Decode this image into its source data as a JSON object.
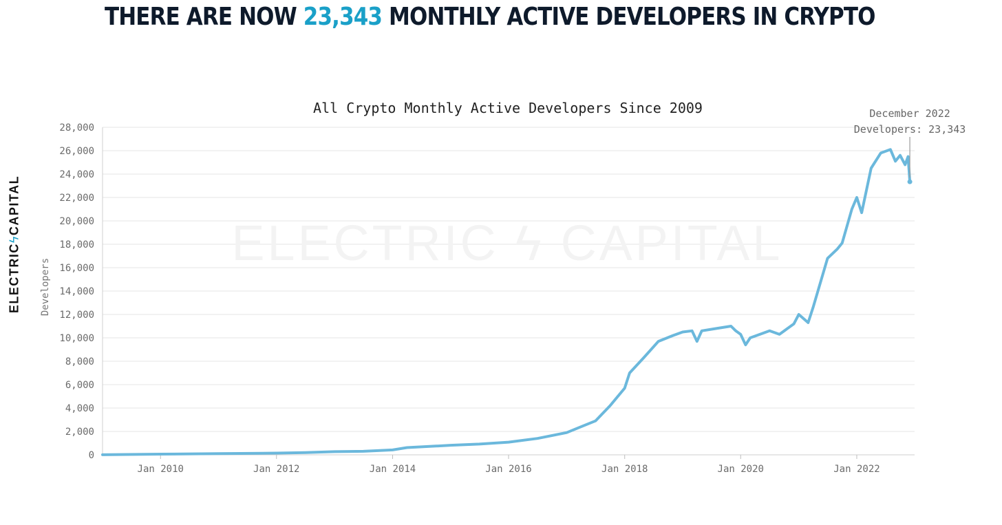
{
  "headline": {
    "prefix": "THERE ARE NOW ",
    "highlight": "23,343",
    "suffix": " MONTHLY ACTIVE DEVELOPERS IN CRYPTO",
    "highlight_color": "#1aa0c8"
  },
  "brand": {
    "left": "ELECTRIC",
    "bolt": "ϟ",
    "right": "CAPITAL"
  },
  "chart_data": {
    "type": "line",
    "title": "All Crypto Monthly Active Developers Since 2009",
    "ylabel": "Developers",
    "xlabel": "",
    "ylim": [
      0,
      28000
    ],
    "xlim": [
      "2009-01-01",
      "2022-12-31"
    ],
    "grid": true,
    "line_color": "#6bb8dc",
    "watermark": "ELECTRIC ϟ CAPITAL",
    "x_ticks": [
      {
        "date": "2010-01-01",
        "label": "Jan 2010"
      },
      {
        "date": "2012-01-01",
        "label": "Jan 2012"
      },
      {
        "date": "2014-01-01",
        "label": "Jan 2014"
      },
      {
        "date": "2016-01-01",
        "label": "Jan 2016"
      },
      {
        "date": "2018-01-01",
        "label": "Jan 2018"
      },
      {
        "date": "2020-01-01",
        "label": "Jan 2020"
      },
      {
        "date": "2022-01-01",
        "label": "Jan 2022"
      }
    ],
    "y_ticks": [
      {
        "value": 0,
        "label": "0"
      },
      {
        "value": 2000,
        "label": "2,000"
      },
      {
        "value": 4000,
        "label": "4,000"
      },
      {
        "value": 6000,
        "label": "6,000"
      },
      {
        "value": 8000,
        "label": "8,000"
      },
      {
        "value": 10000,
        "label": "10,000"
      },
      {
        "value": 12000,
        "label": "12,000"
      },
      {
        "value": 14000,
        "label": "14,000"
      },
      {
        "value": 16000,
        "label": "16,000"
      },
      {
        "value": 18000,
        "label": "18,000"
      },
      {
        "value": 20000,
        "label": "20,000"
      },
      {
        "value": 22000,
        "label": "22,000"
      },
      {
        "value": 24000,
        "label": "24,000"
      },
      {
        "value": 26000,
        "label": "26,000"
      },
      {
        "value": 28000,
        "label": "28,000"
      }
    ],
    "series": [
      {
        "points": [
          [
            "2009-01-01",
            5
          ],
          [
            "2010-01-01",
            60
          ],
          [
            "2011-01-01",
            100
          ],
          [
            "2012-01-01",
            150
          ],
          [
            "2012-07-01",
            190
          ],
          [
            "2013-01-01",
            270
          ],
          [
            "2013-07-01",
            300
          ],
          [
            "2014-01-01",
            420
          ],
          [
            "2014-04-01",
            620
          ],
          [
            "2014-10-01",
            750
          ],
          [
            "2015-01-01",
            820
          ],
          [
            "2015-07-01",
            920
          ],
          [
            "2016-01-01",
            1080
          ],
          [
            "2016-07-01",
            1400
          ],
          [
            "2017-01-01",
            1900
          ],
          [
            "2017-04-01",
            2400
          ],
          [
            "2017-07-01",
            2900
          ],
          [
            "2017-10-01",
            4200
          ],
          [
            "2018-01-01",
            5700
          ],
          [
            "2018-02-01",
            7000
          ],
          [
            "2018-05-01",
            8300
          ],
          [
            "2018-08-01",
            9700
          ],
          [
            "2018-11-01",
            10200
          ],
          [
            "2019-01-01",
            10500
          ],
          [
            "2019-03-01",
            10600
          ],
          [
            "2019-04-01",
            9700
          ],
          [
            "2019-05-01",
            10600
          ],
          [
            "2019-08-01",
            10800
          ],
          [
            "2019-11-01",
            11000
          ],
          [
            "2019-12-01",
            10600
          ],
          [
            "2020-01-01",
            10300
          ],
          [
            "2020-02-01",
            9400
          ],
          [
            "2020-03-01",
            10000
          ],
          [
            "2020-07-01",
            10600
          ],
          [
            "2020-09-01",
            10300
          ],
          [
            "2020-12-01",
            11200
          ],
          [
            "2021-01-01",
            12000
          ],
          [
            "2021-03-01",
            11300
          ],
          [
            "2021-04-01",
            12600
          ],
          [
            "2021-07-01",
            16800
          ],
          [
            "2021-09-01",
            17600
          ],
          [
            "2021-10-01",
            18100
          ],
          [
            "2021-12-01",
            21000
          ],
          [
            "2022-01-01",
            22000
          ],
          [
            "2022-02-01",
            20700
          ],
          [
            "2022-04-01",
            24500
          ],
          [
            "2022-06-01",
            25800
          ],
          [
            "2022-08-01",
            26100
          ],
          [
            "2022-09-01",
            25100
          ],
          [
            "2022-10-01",
            25600
          ],
          [
            "2022-11-01",
            24800
          ],
          [
            "2022-11-20",
            25500
          ],
          [
            "2022-12-01",
            23343
          ]
        ]
      }
    ],
    "annotation": {
      "date": "2022-12-01",
      "value": 23343,
      "line1": "December 2022",
      "line2": "Developers: 23,343"
    }
  }
}
